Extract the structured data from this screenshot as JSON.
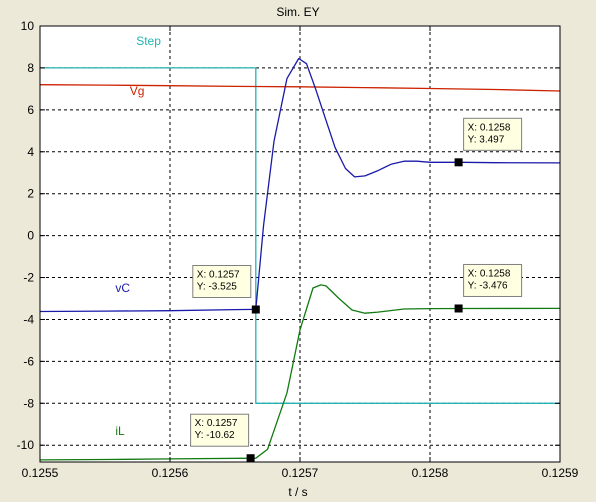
{
  "chart_data": {
    "type": "line",
    "title": "Sim. EY",
    "xlabel": "t / s",
    "ylabel": "",
    "xlim": [
      0.1255,
      0.1259
    ],
    "ylim": [
      -10.8,
      10
    ],
    "xticks": [
      "0.1255",
      "0.1256",
      "0.1257",
      "0.1258",
      "0.1259"
    ],
    "yticks": [
      "10",
      "8",
      "6",
      "4",
      "2",
      "0",
      "-2",
      "-4",
      "-6",
      "-8",
      "-10"
    ],
    "grid": true,
    "series": [
      {
        "name": "Step",
        "color": "#22b4b4",
        "points": [
          [
            0.1255,
            8
          ],
          [
            0.125666,
            8
          ],
          [
            0.125666,
            -8
          ],
          [
            0.1259,
            -8
          ]
        ]
      },
      {
        "name": "Vg",
        "color": "#cc2200",
        "points": [
          [
            0.1255,
            7.2
          ],
          [
            0.12555,
            7.18
          ],
          [
            0.1256,
            7.15
          ],
          [
            0.12565,
            7.12
          ],
          [
            0.1257,
            7.1
          ],
          [
            0.12575,
            7.06
          ],
          [
            0.1258,
            7.02
          ],
          [
            0.12585,
            6.97
          ],
          [
            0.1259,
            6.9
          ]
        ]
      },
      {
        "name": "vC",
        "color": "#1a1aaa",
        "points": [
          [
            0.1255,
            -3.62
          ],
          [
            0.12555,
            -3.6
          ],
          [
            0.1256,
            -3.58
          ],
          [
            0.12565,
            -3.53
          ],
          [
            0.125666,
            -3.52
          ],
          [
            0.125672,
            0.5
          ],
          [
            0.12568,
            4.5
          ],
          [
            0.12569,
            7.5
          ],
          [
            0.125699,
            8.45
          ],
          [
            0.125705,
            8.2
          ],
          [
            0.125712,
            7
          ],
          [
            0.12572,
            5.5
          ],
          [
            0.125727,
            4.2
          ],
          [
            0.125735,
            3.2
          ],
          [
            0.125742,
            2.8
          ],
          [
            0.12575,
            2.85
          ],
          [
            0.12576,
            3.1
          ],
          [
            0.12577,
            3.4
          ],
          [
            0.12578,
            3.55
          ],
          [
            0.12579,
            3.55
          ],
          [
            0.1258,
            3.5
          ],
          [
            0.125825,
            3.497
          ],
          [
            0.12585,
            3.48
          ],
          [
            0.1259,
            3.47
          ]
        ]
      },
      {
        "name": "iL",
        "color": "#117a11",
        "points": [
          [
            0.1255,
            -10.7
          ],
          [
            0.12555,
            -10.68
          ],
          [
            0.1256,
            -10.65
          ],
          [
            0.125666,
            -10.62
          ],
          [
            0.125675,
            -10.2
          ],
          [
            0.12569,
            -7.5
          ],
          [
            0.1257,
            -4.5
          ],
          [
            0.12571,
            -2.5
          ],
          [
            0.125716,
            -2.35
          ],
          [
            0.12572,
            -2.4
          ],
          [
            0.12573,
            -3
          ],
          [
            0.12574,
            -3.55
          ],
          [
            0.12575,
            -3.7
          ],
          [
            0.12576,
            -3.65
          ],
          [
            0.12578,
            -3.5
          ],
          [
            0.1258,
            -3.48
          ],
          [
            0.125825,
            -3.476
          ],
          [
            0.1259,
            -3.47
          ]
        ]
      }
    ],
    "series_labels": [
      {
        "series": 0,
        "text": "Step",
        "x": 0.125574,
        "y": 9.1
      },
      {
        "series": 1,
        "text": "Vg",
        "x": 0.125569,
        "y": 6.7
      },
      {
        "series": 2,
        "text": "vC",
        "x": 0.125558,
        "y": -2.7
      },
      {
        "series": 3,
        "text": "iL",
        "x": 0.125558,
        "y": -9.5
      }
    ],
    "datatips": [
      {
        "x": 0.125822,
        "y": 3.497,
        "lines": [
          "X: 0.1258",
          "Y: 3.497"
        ],
        "box_dx": 5,
        "box_dy": -44
      },
      {
        "x": 0.125666,
        "y": -3.525,
        "lines": [
          "X: 0.1257",
          "Y: -3.525"
        ],
        "box_dx": -63,
        "box_dy": -44
      },
      {
        "x": 0.125822,
        "y": -3.476,
        "lines": [
          "X: 0.1258",
          "Y: -3.476"
        ],
        "box_dx": 5,
        "box_dy": -44
      },
      {
        "x": 0.125662,
        "y": -10.62,
        "lines": [
          "X: 0.1257",
          "Y: -10.62"
        ],
        "box_dx": -60,
        "box_dy": -44
      }
    ]
  }
}
